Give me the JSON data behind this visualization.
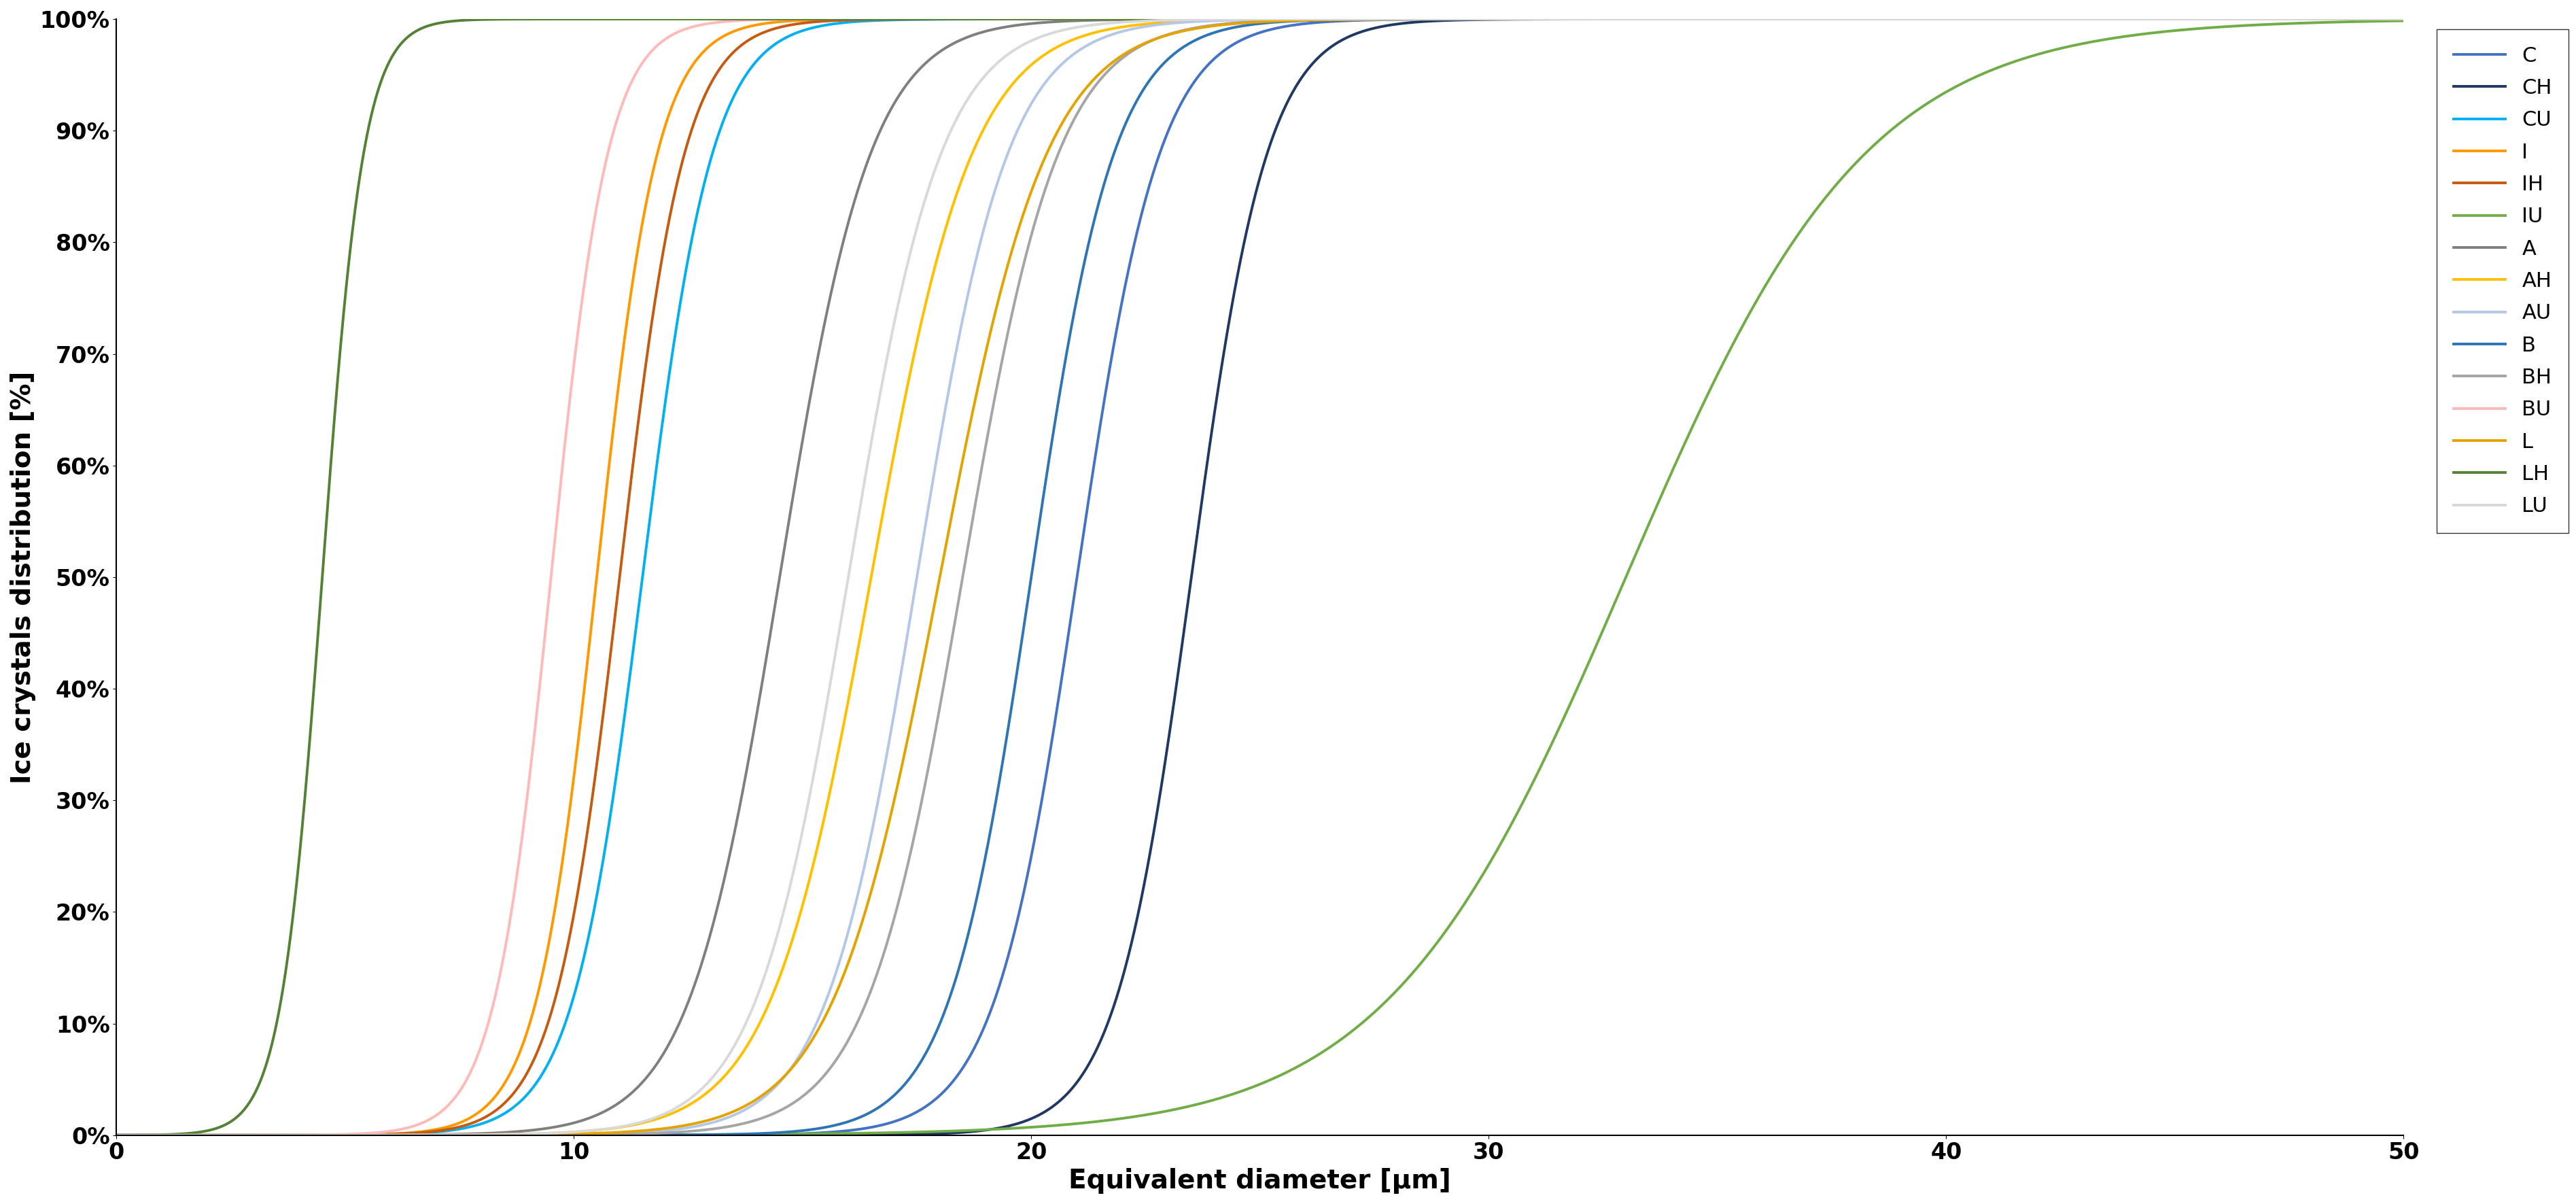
{
  "title": "",
  "xlabel": "Equivalent diameter [μm]",
  "ylabel": "Ice crystals distribution [%]",
  "xlim": [
    0,
    50
  ],
  "ylim": [
    0,
    1.0
  ],
  "xticks": [
    0,
    10,
    20,
    30,
    40,
    50
  ],
  "series": [
    {
      "label": "C",
      "color": "#4472C4",
      "midpoint": 21.0,
      "steepness": 1.1
    },
    {
      "label": "CH",
      "color": "#1F3864",
      "midpoint": 23.5,
      "steepness": 1.2
    },
    {
      "label": "CU",
      "color": "#00B0F0",
      "midpoint": 11.5,
      "steepness": 1.3
    },
    {
      "label": "I",
      "color": "#FF9900",
      "midpoint": 10.5,
      "steepness": 1.5
    },
    {
      "label": "IH",
      "color": "#C55A11",
      "midpoint": 11.0,
      "steepness": 1.4
    },
    {
      "label": "IU",
      "color": "#70AD47",
      "midpoint": 33.0,
      "steepness": 0.38
    },
    {
      "label": "A",
      "color": "#7F7F7F",
      "midpoint": 14.5,
      "steepness": 1.0
    },
    {
      "label": "AH",
      "color": "#FFC000",
      "midpoint": 16.5,
      "steepness": 0.9
    },
    {
      "label": "AU",
      "color": "#B4C7E7",
      "midpoint": 17.5,
      "steepness": 1.0
    },
    {
      "label": "B",
      "color": "#2E75B6",
      "midpoint": 20.0,
      "steepness": 1.1
    },
    {
      "label": "BH",
      "color": "#A5A5A5",
      "midpoint": 18.5,
      "steepness": 0.95
    },
    {
      "label": "BU",
      "color": "#FFB9B9",
      "midpoint": 9.5,
      "steepness": 1.6
    },
    {
      "label": "L",
      "color": "#E3A300",
      "midpoint": 18.0,
      "steepness": 0.85
    },
    {
      "label": "LH",
      "color": "#548235",
      "midpoint": 4.5,
      "steepness": 2.2
    },
    {
      "label": "LU",
      "color": "#D9D9D9",
      "midpoint": 16.0,
      "steepness": 0.98
    }
  ],
  "linewidth": 2.8,
  "legend_fontsize": 22,
  "axis_label_fontsize": 28,
  "tick_fontsize": 24
}
